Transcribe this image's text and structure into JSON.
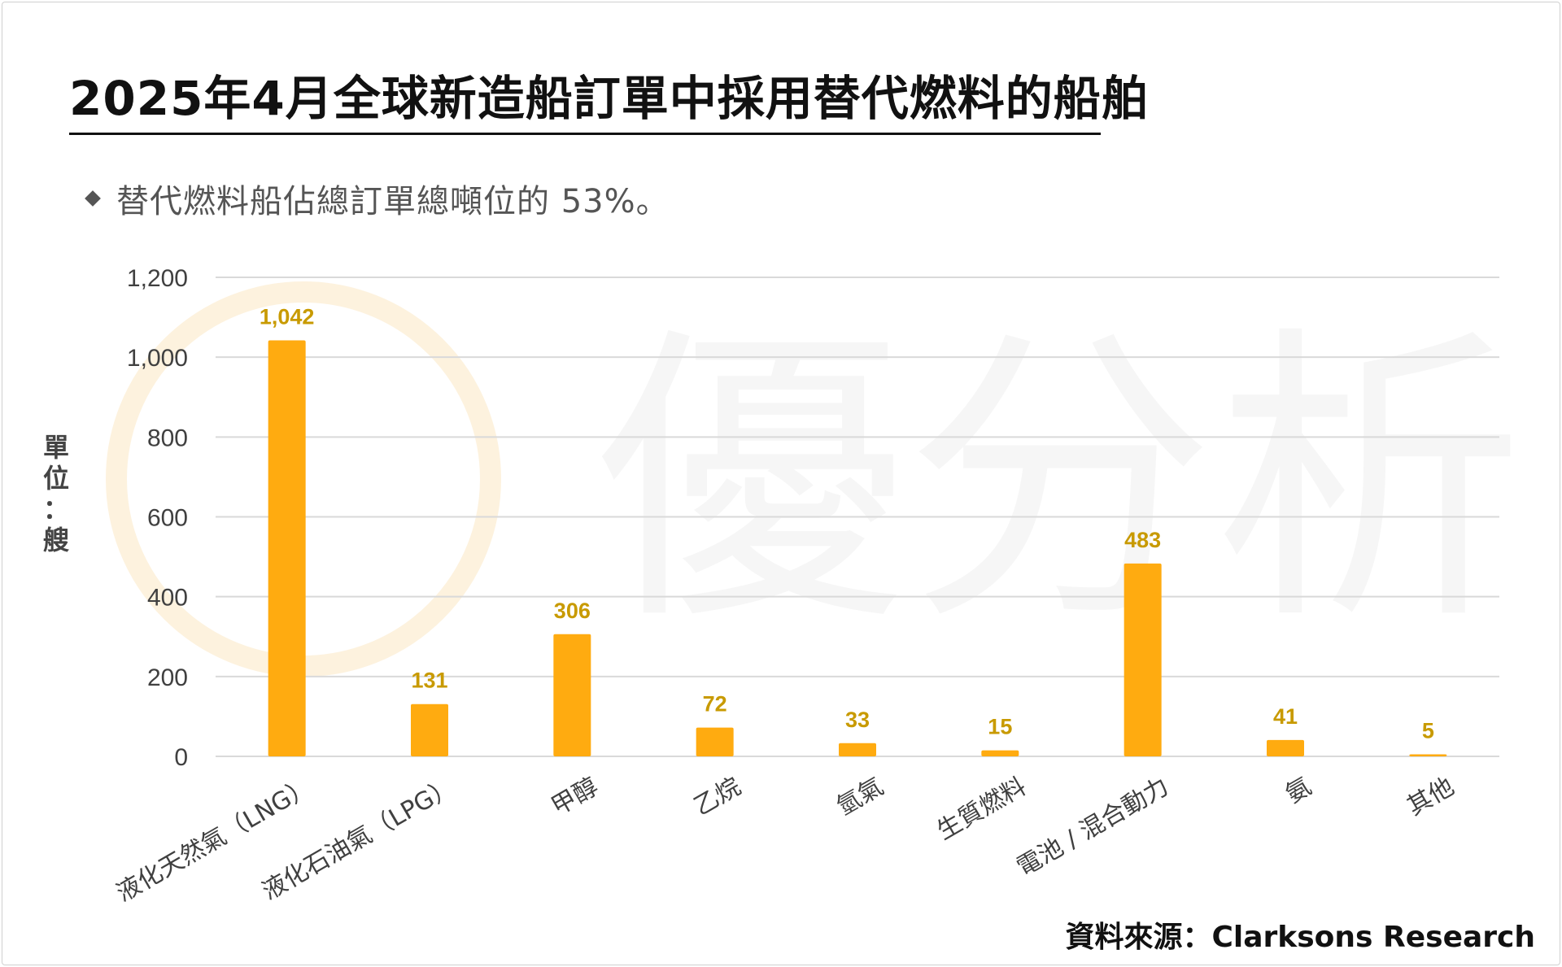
{
  "title": "2025年4月全球新造船訂單中採用替代燃料的船舶",
  "subtitle": "替代燃料船佔總訂單總噸位的 53%。",
  "unit_label": [
    "單",
    "位",
    "：",
    "艘"
  ],
  "source": "資料來源：Clarksons Research",
  "watermark": "優分析",
  "colors": {
    "bar": "#FFAB10",
    "value_label": "#C89A00",
    "grid": "#d9d9d9",
    "axis_text": "#404040"
  },
  "chart_data": {
    "type": "bar",
    "title": "2025年4月全球新造船訂單中採用替代燃料的船舶",
    "ylabel": "單位：艘",
    "categories": [
      "液化天然氣（LNG）",
      "液化石油氣（LPG）",
      "甲醇",
      "乙烷",
      "氫氣",
      "生質燃料",
      "電池 / 混合動力",
      "氨",
      "其他"
    ],
    "values": [
      1042,
      131,
      306,
      72,
      33,
      15,
      483,
      41,
      5
    ],
    "value_labels": [
      "1,042",
      "131",
      "306",
      "72",
      "33",
      "15",
      "483",
      "41",
      "5"
    ],
    "yticks": [
      "0",
      "200",
      "400",
      "600",
      "800",
      "1,000",
      "1,200"
    ],
    "ytick_values": [
      0,
      200,
      400,
      600,
      800,
      1000,
      1200
    ],
    "ylim": [
      0,
      1200
    ],
    "grid": true
  }
}
